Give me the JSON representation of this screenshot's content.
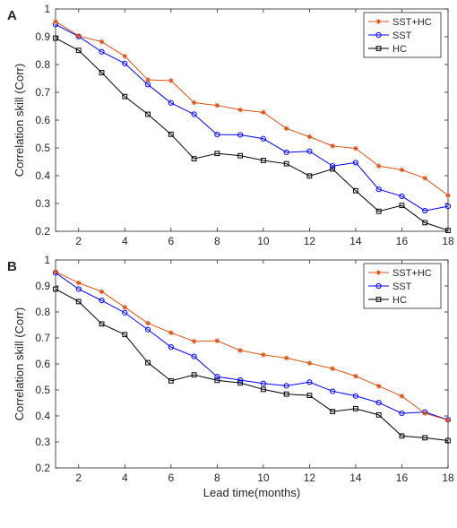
{
  "chart_data": [
    {
      "type": "line",
      "panel_label": "A",
      "ylabel": "Correlation skill (Corr)",
      "xlabel": "",
      "xlim": [
        1,
        18
      ],
      "ylim": [
        0.2,
        1
      ],
      "xticks": [
        2,
        4,
        6,
        8,
        10,
        12,
        14,
        16,
        18
      ],
      "yticks": [
        0.2,
        0.3,
        0.4,
        0.5,
        0.6,
        0.7,
        0.8,
        0.9,
        1
      ],
      "ytick_labels": [
        "0.2",
        "0.3",
        "0.4",
        "0.5",
        "0.6",
        "0.7",
        "0.8",
        "0.9",
        "1"
      ],
      "legend_position": "top-right",
      "grid": false,
      "x": [
        1,
        2,
        3,
        4,
        5,
        6,
        7,
        8,
        9,
        10,
        11,
        12,
        13,
        14,
        15,
        16,
        17,
        18
      ],
      "series": [
        {
          "name": "SST+HC",
          "color": "#D95319",
          "marker": "asterisk",
          "values": [
            0.955,
            0.903,
            0.882,
            0.83,
            0.745,
            0.742,
            0.663,
            0.653,
            0.637,
            0.628,
            0.57,
            0.54,
            0.507,
            0.498,
            0.435,
            0.421,
            0.391,
            0.329
          ]
        },
        {
          "name": "SST",
          "color": "#0000FF",
          "marker": "circle",
          "values": [
            0.944,
            0.901,
            0.846,
            0.804,
            0.728,
            0.662,
            0.621,
            0.548,
            0.547,
            0.533,
            0.484,
            0.488,
            0.435,
            0.447,
            0.351,
            0.326,
            0.274,
            0.29
          ]
        },
        {
          "name": "HC",
          "color": "#000000",
          "marker": "square",
          "values": [
            0.895,
            0.851,
            0.771,
            0.685,
            0.621,
            0.549,
            0.461,
            0.48,
            0.472,
            0.455,
            0.443,
            0.399,
            0.424,
            0.346,
            0.272,
            0.293,
            0.231,
            0.203
          ]
        }
      ]
    },
    {
      "type": "line",
      "panel_label": "B",
      "ylabel": "Correlation skill (Corr)",
      "xlabel": "Lead time(months)",
      "xlim": [
        1,
        18
      ],
      "ylim": [
        0.2,
        1
      ],
      "xticks": [
        2,
        4,
        6,
        8,
        10,
        12,
        14,
        16,
        18
      ],
      "yticks": [
        0.2,
        0.3,
        0.4,
        0.5,
        0.6,
        0.7,
        0.8,
        0.9,
        1
      ],
      "ytick_labels": [
        "0.2",
        "0.3",
        "0.4",
        "0.5",
        "0.6",
        "0.7",
        "0.8",
        "0.9",
        "1"
      ],
      "legend_position": "top-right",
      "grid": false,
      "x": [
        1,
        2,
        3,
        4,
        5,
        6,
        7,
        8,
        9,
        10,
        11,
        12,
        13,
        14,
        15,
        16,
        17,
        18
      ],
      "series": [
        {
          "name": "SST+HC",
          "color": "#D95319",
          "marker": "asterisk",
          "values": [
            0.955,
            0.912,
            0.878,
            0.818,
            0.757,
            0.72,
            0.687,
            0.689,
            0.652,
            0.635,
            0.623,
            0.603,
            0.582,
            0.553,
            0.515,
            0.476,
            0.41,
            0.384
          ]
        },
        {
          "name": "SST",
          "color": "#0000FF",
          "marker": "circle",
          "values": [
            0.951,
            0.888,
            0.844,
            0.797,
            0.732,
            0.665,
            0.629,
            0.551,
            0.538,
            0.525,
            0.516,
            0.53,
            0.495,
            0.477,
            0.451,
            0.41,
            0.415,
            0.385
          ]
        },
        {
          "name": "HC",
          "color": "#000000",
          "marker": "square",
          "values": [
            0.888,
            0.84,
            0.754,
            0.713,
            0.605,
            0.535,
            0.558,
            0.537,
            0.527,
            0.502,
            0.484,
            0.479,
            0.417,
            0.428,
            0.404,
            0.323,
            0.316,
            0.305
          ]
        }
      ]
    }
  ]
}
